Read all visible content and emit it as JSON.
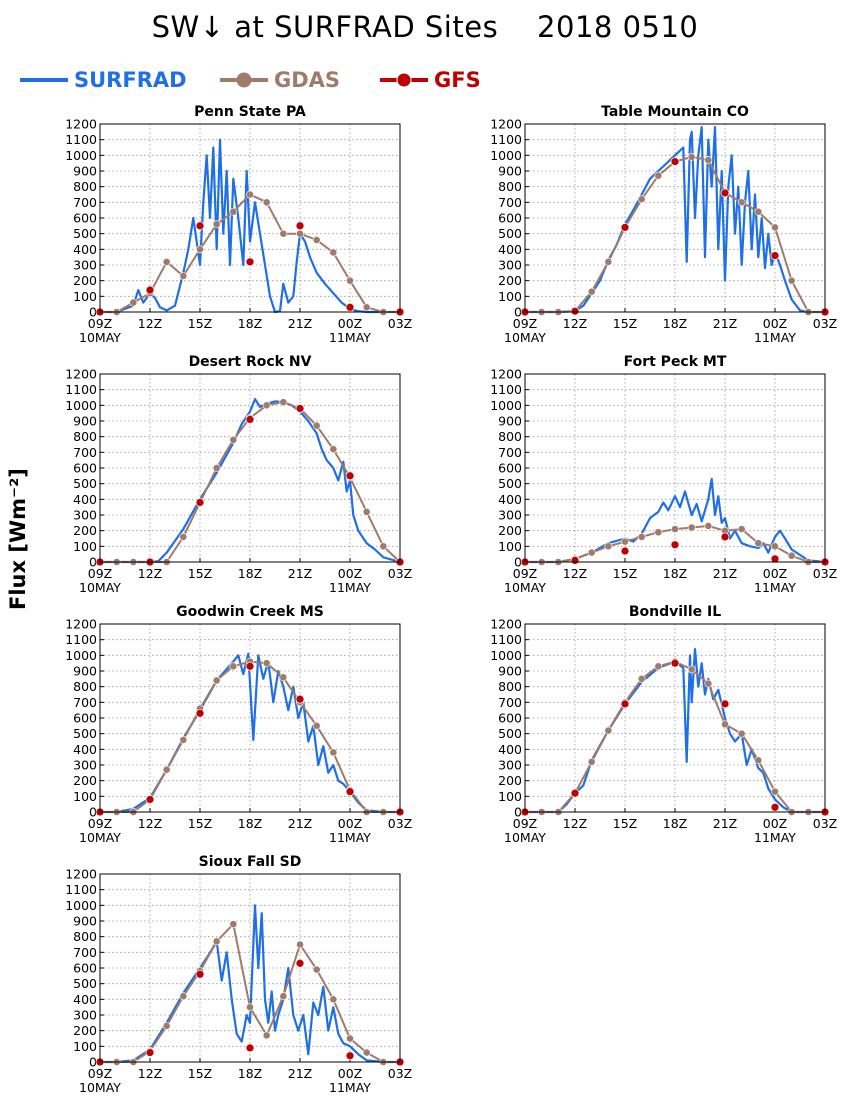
{
  "title": "SW↓ at SURFRAD Sites    2018 0510",
  "ylabel": "Flux [Wm⁻²]",
  "legend": [
    {
      "name": "SURFRAD",
      "color": "#1f6fe6",
      "marker": "none"
    },
    {
      "name": "GDAS",
      "color": "#a07a6a",
      "marker": "circle"
    },
    {
      "name": "GFS",
      "color": "#c00000",
      "marker": "circle"
    }
  ],
  "axis": {
    "x_ticks": [
      "09Z",
      "12Z",
      "15Z",
      "18Z",
      "21Z",
      "00Z",
      "03Z"
    ],
    "x_range": [
      9,
      27
    ],
    "date_labels": [
      {
        "at": 9,
        "text": "10MAY"
      },
      {
        "at": 24,
        "text": "11MAY"
      }
    ],
    "ylim": [
      0,
      1200
    ],
    "y_ticks": [
      0,
      100,
      200,
      300,
      400,
      500,
      600,
      700,
      800,
      900,
      1000,
      1100,
      1200
    ],
    "grid": true
  },
  "chart_data": [
    {
      "type": "line",
      "title": "Penn State PA",
      "series": [
        {
          "name": "SURFRAD",
          "x": [
            9,
            10,
            10.5,
            11,
            11.3,
            11.6,
            12,
            12.3,
            12.6,
            13,
            13.5,
            14,
            14.3,
            14.6,
            15,
            15.2,
            15.4,
            15.6,
            15.8,
            16,
            16.2,
            16.4,
            16.6,
            16.8,
            17,
            17.3,
            17.6,
            17.8,
            18,
            18.3,
            18.6,
            18.9,
            19.2,
            19.5,
            19.8,
            20,
            20.3,
            20.6,
            20.8,
            21,
            21.3,
            21.6,
            22,
            22.5,
            23,
            23.5,
            24,
            24.5,
            25,
            26,
            27
          ],
          "y": [
            0,
            0,
            20,
            40,
            140,
            60,
            120,
            90,
            30,
            10,
            40,
            250,
            400,
            600,
            300,
            700,
            1000,
            600,
            1050,
            400,
            1100,
            500,
            900,
            300,
            850,
            600,
            300,
            900,
            450,
            700,
            500,
            300,
            100,
            0,
            5,
            180,
            60,
            100,
            320,
            500,
            450,
            350,
            250,
            180,
            120,
            60,
            20,
            5,
            0,
            0,
            0
          ]
        },
        {
          "name": "GDAS",
          "x": [
            9,
            10,
            11,
            12,
            13,
            14,
            15,
            16,
            17,
            18,
            19,
            20,
            21,
            22,
            23,
            24,
            25,
            26,
            27
          ],
          "y": [
            0,
            0,
            60,
            120,
            320,
            230,
            400,
            560,
            640,
            750,
            700,
            500,
            500,
            460,
            380,
            200,
            30,
            0,
            0
          ]
        },
        {
          "name": "GFS",
          "x": [
            9,
            12,
            15,
            18,
            21,
            24,
            27
          ],
          "y": [
            0,
            140,
            550,
            320,
            550,
            30,
            0
          ]
        }
      ]
    },
    {
      "type": "line",
      "title": "Table Mountain CO",
      "series": [
        {
          "name": "SURFRAD",
          "x": [
            9,
            11,
            12,
            12.5,
            13,
            13.5,
            14,
            14.5,
            15,
            15.5,
            16,
            16.5,
            17,
            17.5,
            18,
            18.5,
            18.7,
            18.9,
            19,
            19.2,
            19.4,
            19.6,
            19.8,
            20,
            20.2,
            20.4,
            20.6,
            20.8,
            21,
            21.2,
            21.4,
            21.6,
            21.8,
            22,
            22.2,
            22.4,
            22.6,
            22.8,
            23,
            23.2,
            23.4,
            23.6,
            23.8,
            24,
            24.3,
            24.6,
            25,
            25.5,
            26,
            27
          ],
          "y": [
            0,
            0,
            5,
            40,
            120,
            200,
            330,
            430,
            560,
            650,
            750,
            850,
            900,
            950,
            1000,
            1050,
            320,
            1100,
            1150,
            600,
            1000,
            1180,
            350,
            1100,
            800,
            1180,
            400,
            900,
            200,
            800,
            1000,
            500,
            800,
            300,
            700,
            900,
            400,
            750,
            350,
            600,
            280,
            500,
            300,
            380,
            300,
            200,
            80,
            10,
            0,
            0
          ]
        },
        {
          "name": "GDAS",
          "x": [
            9,
            10,
            11,
            12,
            13,
            14,
            15,
            16,
            17,
            18,
            19,
            20,
            21,
            22,
            23,
            24,
            25,
            26,
            27
          ],
          "y": [
            0,
            0,
            0,
            5,
            130,
            320,
            540,
            720,
            870,
            960,
            990,
            970,
            760,
            700,
            640,
            540,
            200,
            0,
            0
          ]
        },
        {
          "name": "GFS",
          "x": [
            9,
            12,
            15,
            18,
            21,
            24,
            27
          ],
          "y": [
            0,
            5,
            540,
            960,
            760,
            360,
            0
          ]
        }
      ]
    },
    {
      "type": "line",
      "title": "Desert Rock NV",
      "series": [
        {
          "name": "SURFRAD",
          "x": [
            9,
            11,
            12,
            12.5,
            13,
            14,
            15,
            16,
            17,
            17.5,
            18,
            18.3,
            18.6,
            19,
            19.5,
            20,
            20.5,
            21,
            21.5,
            22,
            22.3,
            22.6,
            23,
            23.3,
            23.6,
            23.8,
            24,
            24.2,
            24.5,
            25,
            25.5,
            26,
            27
          ],
          "y": [
            0,
            0,
            0,
            5,
            60,
            210,
            400,
            570,
            760,
            880,
            960,
            1040,
            990,
            1010,
            1025,
            1020,
            1000,
            960,
            900,
            820,
            720,
            650,
            600,
            520,
            640,
            450,
            520,
            300,
            200,
            120,
            80,
            30,
            0
          ]
        },
        {
          "name": "GDAS",
          "x": [
            9,
            10,
            11,
            12,
            13,
            14,
            15,
            16,
            17,
            18,
            19,
            20,
            21,
            22,
            23,
            24,
            25,
            26,
            27
          ],
          "y": [
            0,
            0,
            0,
            0,
            0,
            160,
            380,
            600,
            780,
            920,
            1000,
            1020,
            980,
            870,
            720,
            540,
            320,
            100,
            0
          ]
        },
        {
          "name": "GFS",
          "x": [
            9,
            12,
            15,
            18,
            21,
            24,
            27
          ],
          "y": [
            0,
            0,
            380,
            910,
            980,
            550,
            0
          ]
        }
      ]
    },
    {
      "type": "line",
      "title": "Fort Peck MT",
      "series": [
        {
          "name": "SURFRAD",
          "x": [
            9,
            11,
            12,
            13,
            14,
            15,
            15.5,
            16,
            16.5,
            17,
            17.3,
            17.6,
            18,
            18.3,
            18.6,
            19,
            19.3,
            19.6,
            20,
            20.2,
            20.4,
            20.6,
            20.8,
            21,
            21.3,
            21.6,
            22,
            22.5,
            23,
            23.3,
            23.6,
            24,
            24.3,
            24.6,
            25,
            26,
            27
          ],
          "y": [
            0,
            0,
            20,
            60,
            120,
            150,
            130,
            180,
            280,
            320,
            380,
            330,
            420,
            350,
            450,
            300,
            370,
            260,
            400,
            530,
            300,
            420,
            250,
            280,
            150,
            200,
            120,
            100,
            90,
            120,
            60,
            160,
            200,
            150,
            80,
            10,
            0
          ]
        },
        {
          "name": "GDAS",
          "x": [
            9,
            10,
            11,
            12,
            13,
            14,
            15,
            16,
            17,
            18,
            19,
            20,
            21,
            22,
            23,
            24,
            25,
            26,
            27
          ],
          "y": [
            0,
            0,
            0,
            20,
            60,
            100,
            130,
            160,
            190,
            210,
            220,
            230,
            200,
            210,
            120,
            100,
            40,
            0,
            0
          ]
        },
        {
          "name": "GFS",
          "x": [
            9,
            12,
            15,
            18,
            21,
            24,
            27
          ],
          "y": [
            0,
            10,
            70,
            110,
            160,
            20,
            0
          ]
        }
      ]
    },
    {
      "type": "line",
      "title": "Goodwin Creek MS",
      "series": [
        {
          "name": "SURFRAD",
          "x": [
            9,
            10,
            11,
            12,
            13,
            14,
            15,
            16,
            17,
            17.3,
            17.6,
            17.9,
            18.2,
            18.5,
            18.8,
            19.1,
            19.4,
            19.7,
            20,
            20.3,
            20.6,
            20.9,
            21.2,
            21.5,
            21.8,
            22.1,
            22.4,
            22.7,
            23,
            23.3,
            23.6,
            24,
            24.5,
            25,
            26,
            27
          ],
          "y": [
            0,
            0,
            20,
            90,
            270,
            470,
            650,
            840,
            960,
            1000,
            880,
            1010,
            460,
            1000,
            850,
            960,
            700,
            900,
            800,
            650,
            800,
            600,
            700,
            450,
            550,
            300,
            420,
            250,
            300,
            200,
            180,
            130,
            60,
            10,
            0,
            0
          ]
        },
        {
          "name": "GDAS",
          "x": [
            9,
            10,
            11,
            12,
            13,
            14,
            15,
            16,
            17,
            18,
            19,
            20,
            21,
            22,
            23,
            24,
            25,
            26,
            27
          ],
          "y": [
            0,
            0,
            0,
            80,
            270,
            460,
            660,
            840,
            930,
            960,
            950,
            860,
            700,
            550,
            380,
            140,
            0,
            0,
            0
          ]
        },
        {
          "name": "GFS",
          "x": [
            9,
            12,
            15,
            18,
            21,
            24,
            27
          ],
          "y": [
            0,
            80,
            630,
            930,
            720,
            130,
            0
          ]
        }
      ]
    },
    {
      "type": "line",
      "title": "Bondville IL",
      "series": [
        {
          "name": "SURFRAD",
          "x": [
            9,
            10,
            11,
            11.5,
            12,
            12.5,
            13,
            14,
            15,
            16,
            17,
            18,
            18.5,
            18.7,
            18.9,
            19,
            19.2,
            19.4,
            19.6,
            19.8,
            20,
            20.3,
            20.6,
            21,
            21.3,
            21.6,
            22,
            22.3,
            22.6,
            23,
            23.3,
            23.6,
            24,
            24.5,
            25,
            26,
            27
          ],
          "y": [
            0,
            0,
            0,
            50,
            120,
            170,
            330,
            520,
            690,
            830,
            920,
            960,
            920,
            320,
            1000,
            700,
            1040,
            800,
            950,
            750,
            850,
            720,
            780,
            600,
            500,
            450,
            500,
            300,
            400,
            280,
            250,
            150,
            80,
            30,
            0,
            0,
            0
          ]
        },
        {
          "name": "GDAS",
          "x": [
            9,
            10,
            11,
            12,
            13,
            14,
            15,
            16,
            17,
            18,
            19,
            20,
            21,
            22,
            23,
            24,
            25,
            26,
            27
          ],
          "y": [
            0,
            0,
            0,
            120,
            320,
            520,
            700,
            850,
            930,
            960,
            910,
            820,
            560,
            500,
            330,
            130,
            0,
            0,
            0
          ]
        },
        {
          "name": "GFS",
          "x": [
            9,
            12,
            15,
            18,
            21,
            24,
            27
          ],
          "y": [
            0,
            120,
            690,
            950,
            690,
            30,
            0
          ]
        }
      ]
    },
    {
      "type": "line",
      "title": "Sioux Fall SD",
      "series": [
        {
          "name": "SURFRAD",
          "x": [
            9,
            10,
            11,
            12,
            13,
            14,
            15,
            15.5,
            16,
            16.3,
            16.6,
            16.9,
            17.2,
            17.5,
            17.8,
            18,
            18.3,
            18.5,
            18.7,
            18.9,
            19.1,
            19.3,
            19.5,
            19.7,
            20,
            20.3,
            20.6,
            20.9,
            21.2,
            21.5,
            21.8,
            22.1,
            22.4,
            22.7,
            23,
            23.3,
            23.6,
            24,
            24.5,
            25,
            26,
            27
          ],
          "y": [
            0,
            0,
            10,
            80,
            250,
            440,
            600,
            680,
            770,
            520,
            700,
            400,
            180,
            130,
            300,
            250,
            1000,
            600,
            950,
            400,
            250,
            450,
            200,
            300,
            400,
            600,
            300,
            200,
            300,
            50,
            380,
            300,
            480,
            200,
            350,
            180,
            120,
            100,
            50,
            10,
            0,
            0
          ]
        },
        {
          "name": "GDAS",
          "x": [
            9,
            10,
            11,
            12,
            13,
            14,
            15,
            16,
            17,
            18,
            19,
            20,
            21,
            22,
            23,
            24,
            25,
            26,
            27
          ],
          "y": [
            0,
            0,
            0,
            70,
            230,
            420,
            580,
            770,
            880,
            350,
            170,
            420,
            750,
            590,
            400,
            150,
            60,
            0,
            0
          ]
        },
        {
          "name": "GFS",
          "x": [
            9,
            12,
            15,
            18,
            21,
            24,
            27
          ],
          "y": [
            0,
            60,
            560,
            90,
            630,
            40,
            0
          ]
        }
      ]
    }
  ]
}
